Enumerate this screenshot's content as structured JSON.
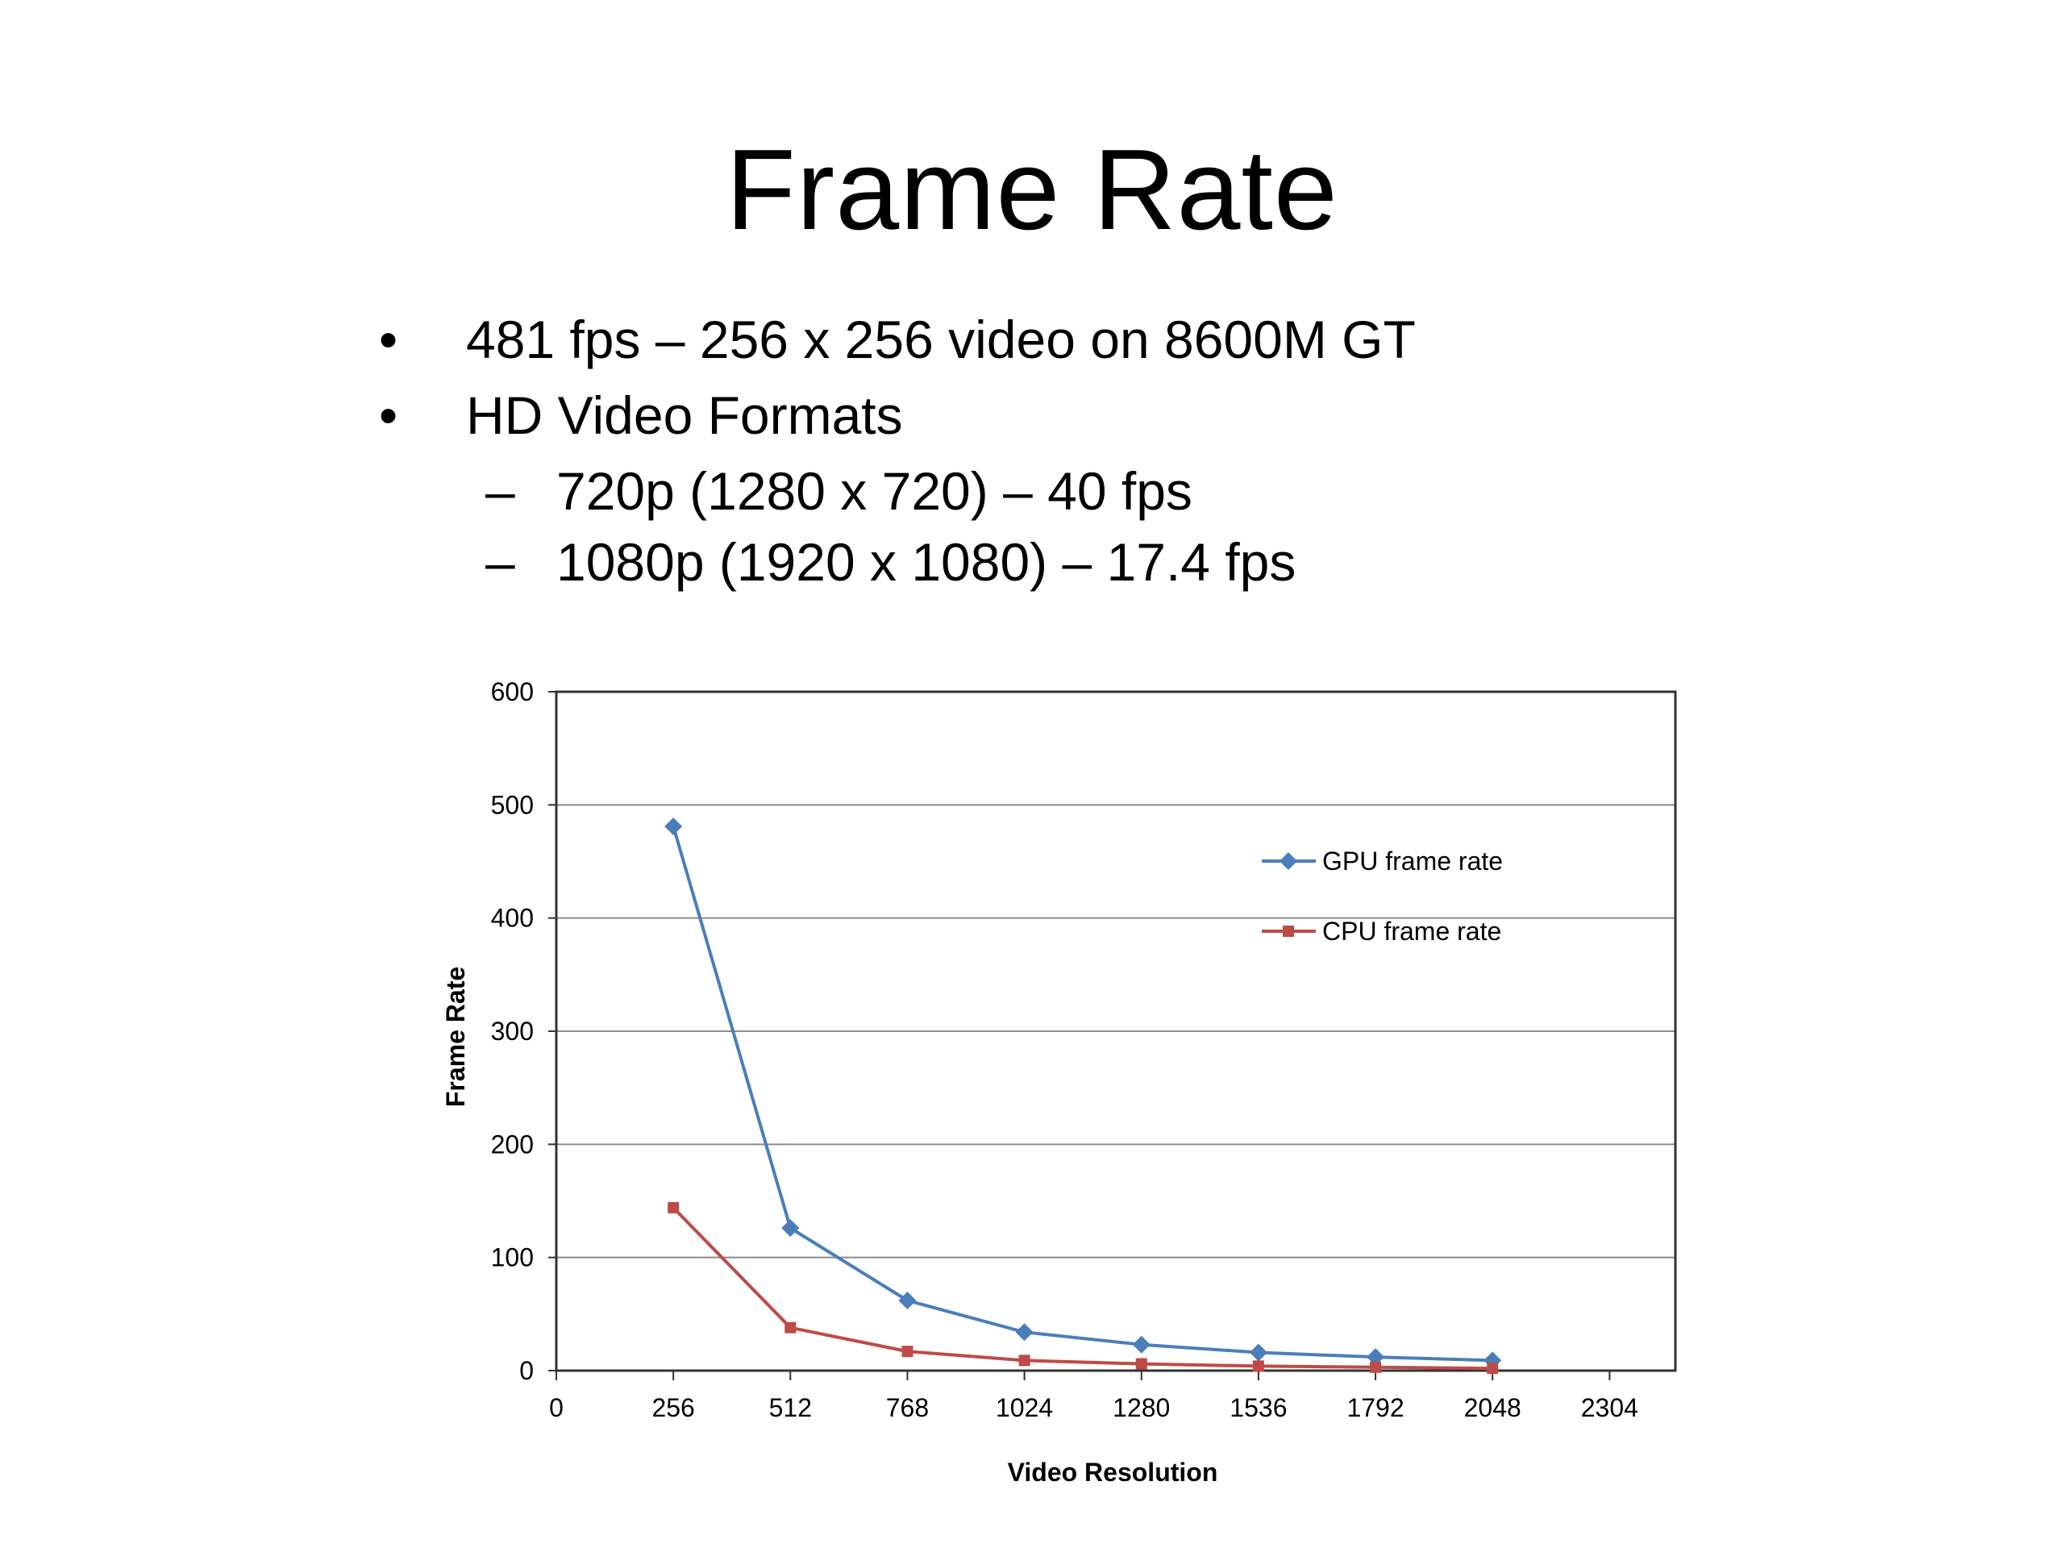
{
  "slide": {
    "title": "Frame Rate",
    "bullets": [
      "481 fps – 256 x 256 video on 8600M GT",
      "HD Video Formats"
    ],
    "sub_bullets": [
      "720p (1280 x 720) – 40 fps",
      "1080p (1920 x 1080) – 17.4 fps"
    ],
    "bullet_marker": "•",
    "sub_marker": "–"
  },
  "chart_data": {
    "type": "line",
    "title": "",
    "xlabel": "Video Resolution",
    "ylabel": "Frame Rate",
    "xlim": [
      0,
      2448
    ],
    "ylim": [
      0,
      600
    ],
    "xticks": [
      0,
      256,
      512,
      768,
      1024,
      1280,
      1536,
      1792,
      2048,
      2304
    ],
    "yticks": [
      0,
      100,
      200,
      300,
      400,
      500,
      600
    ],
    "grid": "horizontal",
    "legend": "right",
    "series": [
      {
        "name": "GPU frame rate",
        "color": "#4a7ebb",
        "marker": "diamond",
        "x": [
          256,
          512,
          768,
          1024,
          1280,
          1536,
          1792,
          2048
        ],
        "y": [
          481,
          126,
          62,
          34,
          23,
          16,
          12,
          9
        ]
      },
      {
        "name": "CPU frame rate",
        "color": "#be4b48",
        "marker": "square",
        "x": [
          256,
          512,
          768,
          1024,
          1280,
          1536,
          1792,
          2048
        ],
        "y": [
          144,
          38,
          17,
          9,
          6,
          4,
          3,
          2
        ]
      }
    ]
  }
}
